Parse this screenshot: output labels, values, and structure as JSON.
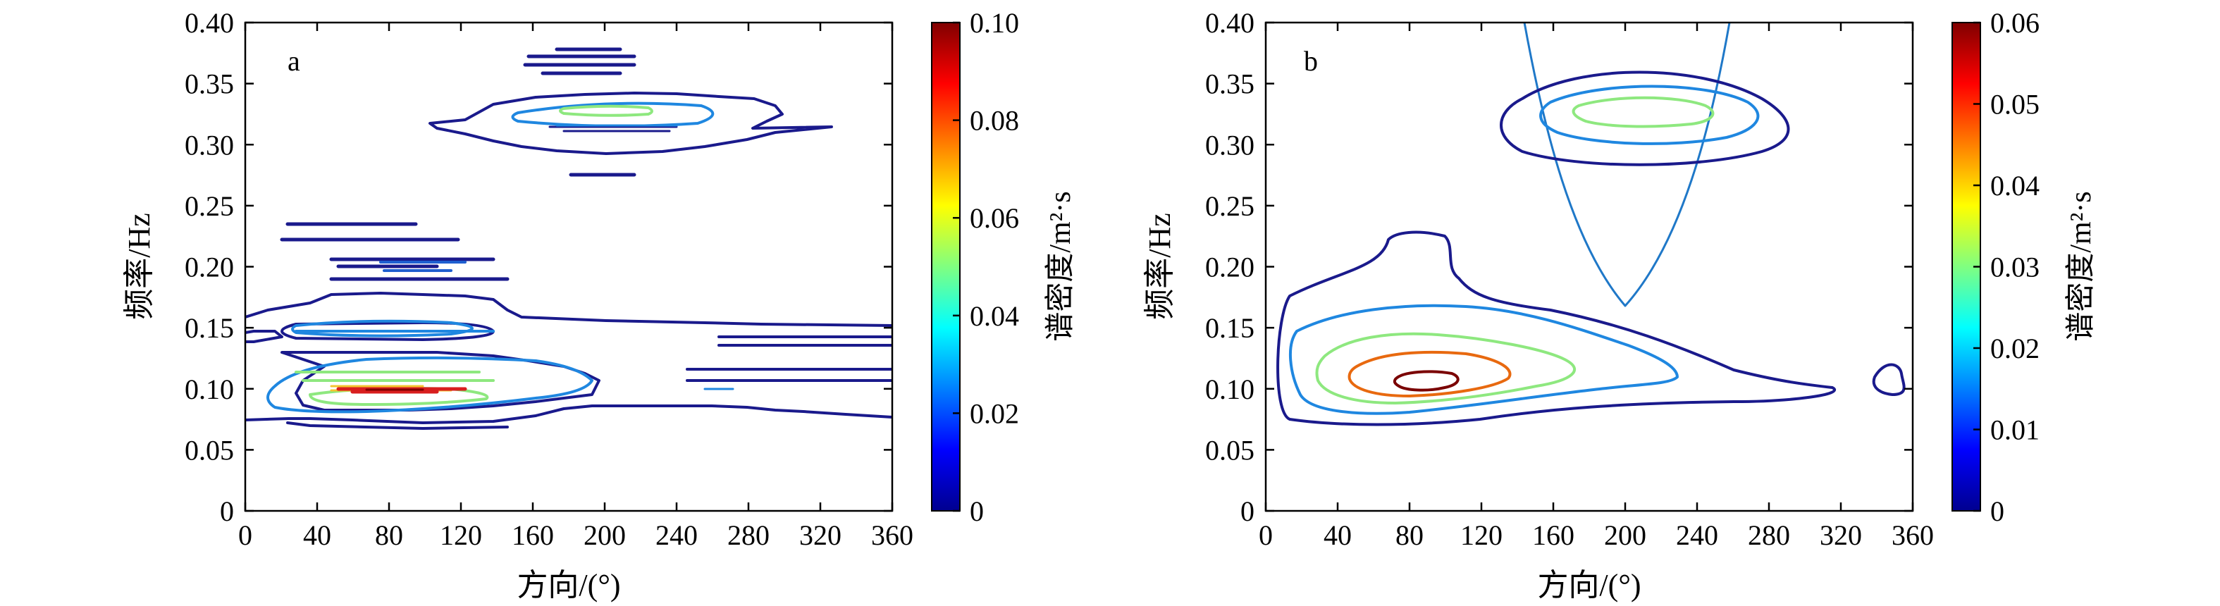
{
  "chart_data": [
    {
      "type": "contour",
      "panel_label": "a",
      "xlabel": "方向/(°)",
      "ylabel": "频率/Hz",
      "xlim": [
        0,
        360
      ],
      "ylim": [
        0,
        0.4
      ],
      "xticks": [
        "0",
        "40",
        "80",
        "120",
        "160",
        "200",
        "240",
        "280",
        "320",
        "360"
      ],
      "yticks": [
        "0",
        "0.05",
        "0.10",
        "0.15",
        "0.20",
        "0.25",
        "0.30",
        "0.35",
        "0.40"
      ],
      "colorbar": {
        "label": "谱密度/m²·s",
        "range": [
          0,
          0.1
        ],
        "ticks": [
          "0",
          "0.02",
          "0.04",
          "0.06",
          "0.08",
          "0.10"
        ]
      },
      "peaks": [
        {
          "direction": 85,
          "frequency": 0.103,
          "level": 0.1
        },
        {
          "direction": 85,
          "frequency": 0.155,
          "level": 0.05
        },
        {
          "direction": 210,
          "frequency": 0.325,
          "level": 0.05
        }
      ]
    },
    {
      "type": "contour",
      "panel_label": "b",
      "xlabel": "方向/(°)",
      "ylabel": "频率/Hz",
      "xlim": [
        0,
        360
      ],
      "ylim": [
        0,
        0.4
      ],
      "xticks": [
        "0",
        "40",
        "80",
        "120",
        "160",
        "200",
        "240",
        "280",
        "320",
        "360"
      ],
      "yticks": [
        "0",
        "0.05",
        "0.10",
        "0.15",
        "0.20",
        "0.25",
        "0.30",
        "0.35",
        "0.40"
      ],
      "colorbar": {
        "label": "谱密度/m²·s",
        "range": [
          0,
          0.06
        ],
        "ticks": [
          "0",
          "0.01",
          "0.02",
          "0.03",
          "0.04",
          "0.05",
          "0.06"
        ]
      },
      "peaks": [
        {
          "direction": 88,
          "frequency": 0.105,
          "level": 0.06
        },
        {
          "direction": 208,
          "frequency": 0.325,
          "level": 0.04
        }
      ],
      "separation_curve": {
        "vertex_direction": 207,
        "vertex_frequency": 0.17
      }
    }
  ]
}
